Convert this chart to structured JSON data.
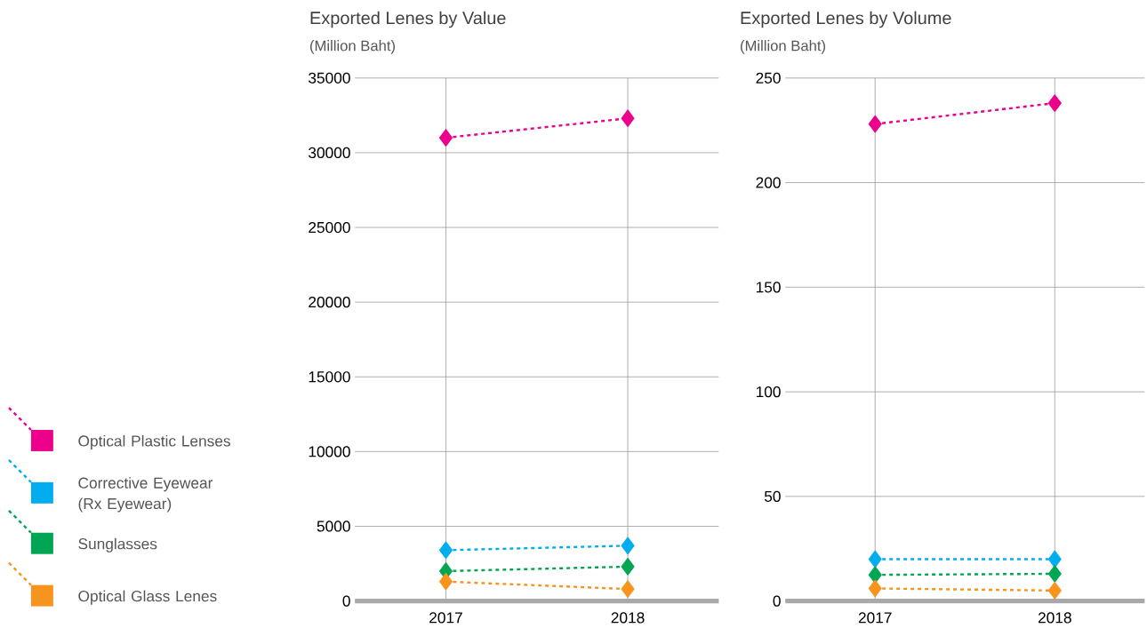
{
  "chart_data": [
    {
      "type": "line",
      "title": "Exported Lenes by Value",
      "subtitle": "(Million Baht)",
      "categories": [
        "2017",
        "2018"
      ],
      "ylim": [
        0,
        35000
      ],
      "yticks": [
        0,
        5000,
        10000,
        15000,
        20000,
        25000,
        30000,
        35000
      ],
      "grid": true,
      "legend": "left",
      "marker": "diamond",
      "line_style": "dashed",
      "series": [
        {
          "name": "Optical Plastic Lenses",
          "color": "#ec008c",
          "values": [
            31000,
            32300
          ]
        },
        {
          "name": "Corrective Eyewear (Rx Eyewear)",
          "color": "#00aeef",
          "values": [
            3400,
            3700
          ]
        },
        {
          "name": "Sunglasses",
          "color": "#00a651",
          "values": [
            2000,
            2300
          ]
        },
        {
          "name": "Optical Glass Lenes",
          "color": "#f7941d",
          "values": [
            1300,
            800
          ]
        }
      ]
    },
    {
      "type": "line",
      "title": "Exported Lenes by Volume",
      "subtitle": "(Million Baht)",
      "categories": [
        "2017",
        "2018"
      ],
      "ylim": [
        0,
        250
      ],
      "yticks": [
        0,
        50,
        100,
        150,
        200,
        250
      ],
      "grid": true,
      "marker": "diamond",
      "line_style": "dashed",
      "series": [
        {
          "color": "#ec008c",
          "values": [
            228,
            238
          ]
        },
        {
          "color": "#00aeef",
          "values": [
            20,
            20
          ]
        },
        {
          "color": "#00a651",
          "values": [
            12.5,
            13
          ]
        },
        {
          "color": "#f7941d",
          "values": [
            6,
            5
          ]
        }
      ]
    }
  ]
}
